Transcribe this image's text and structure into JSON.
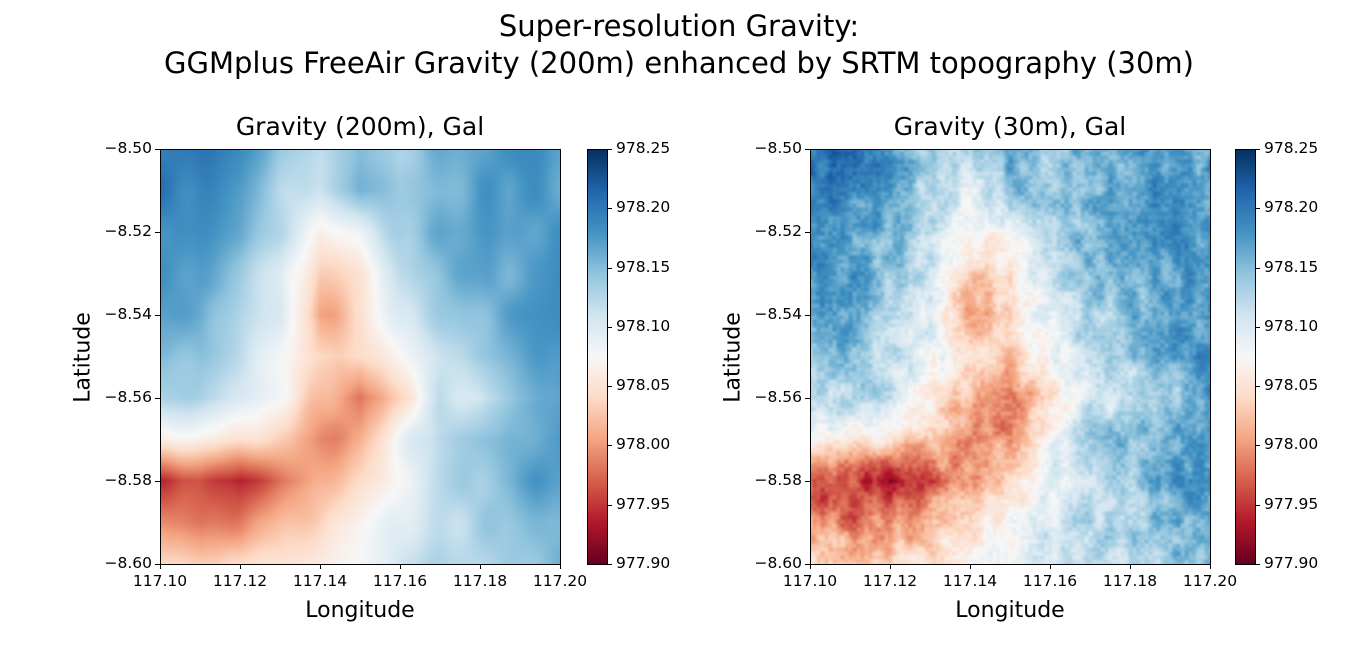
{
  "title_line1": "Super-resolution Gravity:",
  "title_line2": "GGMplus FreeAir Gravity (200m) enhanced by SRTM topography (30m)",
  "chart_data": [
    {
      "type": "heatmap",
      "title": "Gravity (200m), Gal",
      "xlabel": "Longitude",
      "ylabel": "Latitude",
      "xlim": [
        117.1,
        117.2
      ],
      "ylim": [
        -8.6,
        -8.5
      ],
      "xticks": [
        "117.10",
        "117.12",
        "117.14",
        "117.16",
        "117.18",
        "117.20"
      ],
      "yticks": [
        "−8.50",
        "−8.52",
        "−8.54",
        "−8.56",
        "−8.58",
        "−8.60"
      ],
      "colormap": "RdBu",
      "clim": [
        977.9,
        978.25
      ],
      "colorbar_ticks": [
        "978.25",
        "978.20",
        "978.15",
        "978.10",
        "978.05",
        "978.00",
        "977.95",
        "977.90"
      ],
      "grid_lon": [
        117.1,
        117.11,
        117.12,
        117.13,
        117.14,
        117.15,
        117.16,
        117.17,
        117.18,
        117.19,
        117.2
      ],
      "grid_lat": [
        -8.5,
        -8.51,
        -8.52,
        -8.53,
        -8.54,
        -8.55,
        -8.56,
        -8.57,
        -8.58,
        -8.59,
        -8.6
      ],
      "values": [
        [
          978.21,
          978.2,
          978.18,
          978.14,
          978.12,
          978.16,
          978.14,
          978.16,
          978.17,
          978.18,
          978.17
        ],
        [
          978.2,
          978.19,
          978.17,
          978.12,
          978.1,
          978.15,
          978.13,
          978.15,
          978.17,
          978.18,
          978.17
        ],
        [
          978.19,
          978.18,
          978.16,
          978.12,
          978.06,
          978.08,
          978.14,
          978.16,
          978.17,
          978.18,
          978.18
        ],
        [
          978.18,
          978.17,
          978.14,
          978.11,
          978.03,
          978.05,
          978.12,
          978.15,
          978.16,
          978.17,
          978.18
        ],
        [
          978.18,
          978.17,
          978.13,
          978.1,
          978.0,
          978.04,
          978.1,
          978.13,
          978.15,
          978.17,
          978.18
        ],
        [
          978.15,
          978.15,
          978.12,
          978.09,
          978.05,
          978.03,
          978.08,
          978.12,
          978.14,
          978.16,
          978.18
        ],
        [
          978.12,
          978.13,
          978.11,
          978.07,
          978.02,
          977.97,
          978.04,
          978.11,
          978.1,
          978.14,
          978.17
        ],
        [
          978.07,
          978.06,
          978.05,
          978.02,
          977.99,
          978.0,
          978.08,
          978.13,
          978.15,
          978.16,
          978.18
        ],
        [
          977.95,
          977.96,
          977.93,
          977.97,
          978.01,
          978.04,
          978.08,
          978.12,
          978.14,
          978.17,
          978.18
        ],
        [
          978.0,
          977.98,
          977.99,
          978.02,
          978.04,
          978.07,
          978.1,
          978.12,
          978.13,
          978.15,
          978.16
        ],
        [
          978.05,
          978.03,
          978.03,
          978.05,
          978.07,
          978.09,
          978.11,
          978.12,
          978.13,
          978.14,
          978.16
        ]
      ]
    },
    {
      "type": "heatmap",
      "title": "Gravity (30m), Gal",
      "xlabel": "Longitude",
      "ylabel": "Latitude",
      "xlim": [
        117.1,
        117.2
      ],
      "ylim": [
        -8.6,
        -8.5
      ],
      "xticks": [
        "117.10",
        "117.12",
        "117.14",
        "117.16",
        "117.18",
        "117.20"
      ],
      "yticks": [
        "−8.50",
        "−8.52",
        "−8.54",
        "−8.56",
        "−8.58",
        "−8.60"
      ],
      "colormap": "RdBu",
      "clim": [
        977.9,
        978.25
      ],
      "colorbar_ticks": [
        "978.25",
        "978.20",
        "978.15",
        "978.10",
        "978.05",
        "978.00",
        "977.95",
        "977.90"
      ],
      "grid_lon": [
        117.1,
        117.11,
        117.12,
        117.13,
        117.14,
        117.15,
        117.16,
        117.17,
        117.18,
        117.19,
        117.2
      ],
      "grid_lat": [
        -8.5,
        -8.51,
        -8.52,
        -8.53,
        -8.54,
        -8.55,
        -8.56,
        -8.57,
        -8.58,
        -8.59,
        -8.6
      ],
      "values": [
        [
          978.21,
          978.2,
          978.18,
          978.14,
          978.12,
          978.16,
          978.14,
          978.16,
          978.17,
          978.18,
          978.17
        ],
        [
          978.2,
          978.19,
          978.17,
          978.12,
          978.1,
          978.15,
          978.13,
          978.15,
          978.17,
          978.18,
          978.17
        ],
        [
          978.19,
          978.18,
          978.16,
          978.12,
          978.06,
          978.08,
          978.14,
          978.16,
          978.17,
          978.18,
          978.18
        ],
        [
          978.18,
          978.17,
          978.14,
          978.11,
          978.03,
          978.05,
          978.12,
          978.15,
          978.16,
          978.17,
          978.18
        ],
        [
          978.18,
          978.17,
          978.13,
          978.1,
          978.0,
          978.04,
          978.1,
          978.13,
          978.15,
          978.17,
          978.18
        ],
        [
          978.15,
          978.15,
          978.12,
          978.09,
          978.05,
          978.03,
          978.08,
          978.12,
          978.14,
          978.16,
          978.18
        ],
        [
          978.12,
          978.13,
          978.11,
          978.07,
          978.02,
          977.97,
          978.04,
          978.11,
          978.1,
          978.14,
          978.17
        ],
        [
          978.07,
          978.06,
          978.05,
          978.02,
          977.99,
          978.0,
          978.08,
          978.13,
          978.15,
          978.16,
          978.18
        ],
        [
          977.95,
          977.96,
          977.93,
          977.97,
          978.01,
          978.04,
          978.08,
          978.12,
          978.14,
          978.17,
          978.18
        ],
        [
          978.0,
          977.98,
          977.99,
          978.02,
          978.04,
          978.07,
          978.1,
          978.12,
          978.13,
          978.15,
          978.16
        ],
        [
          978.05,
          978.03,
          978.03,
          978.05,
          978.07,
          978.09,
          978.11,
          978.12,
          978.13,
          978.14,
          978.16
        ]
      ]
    }
  ]
}
